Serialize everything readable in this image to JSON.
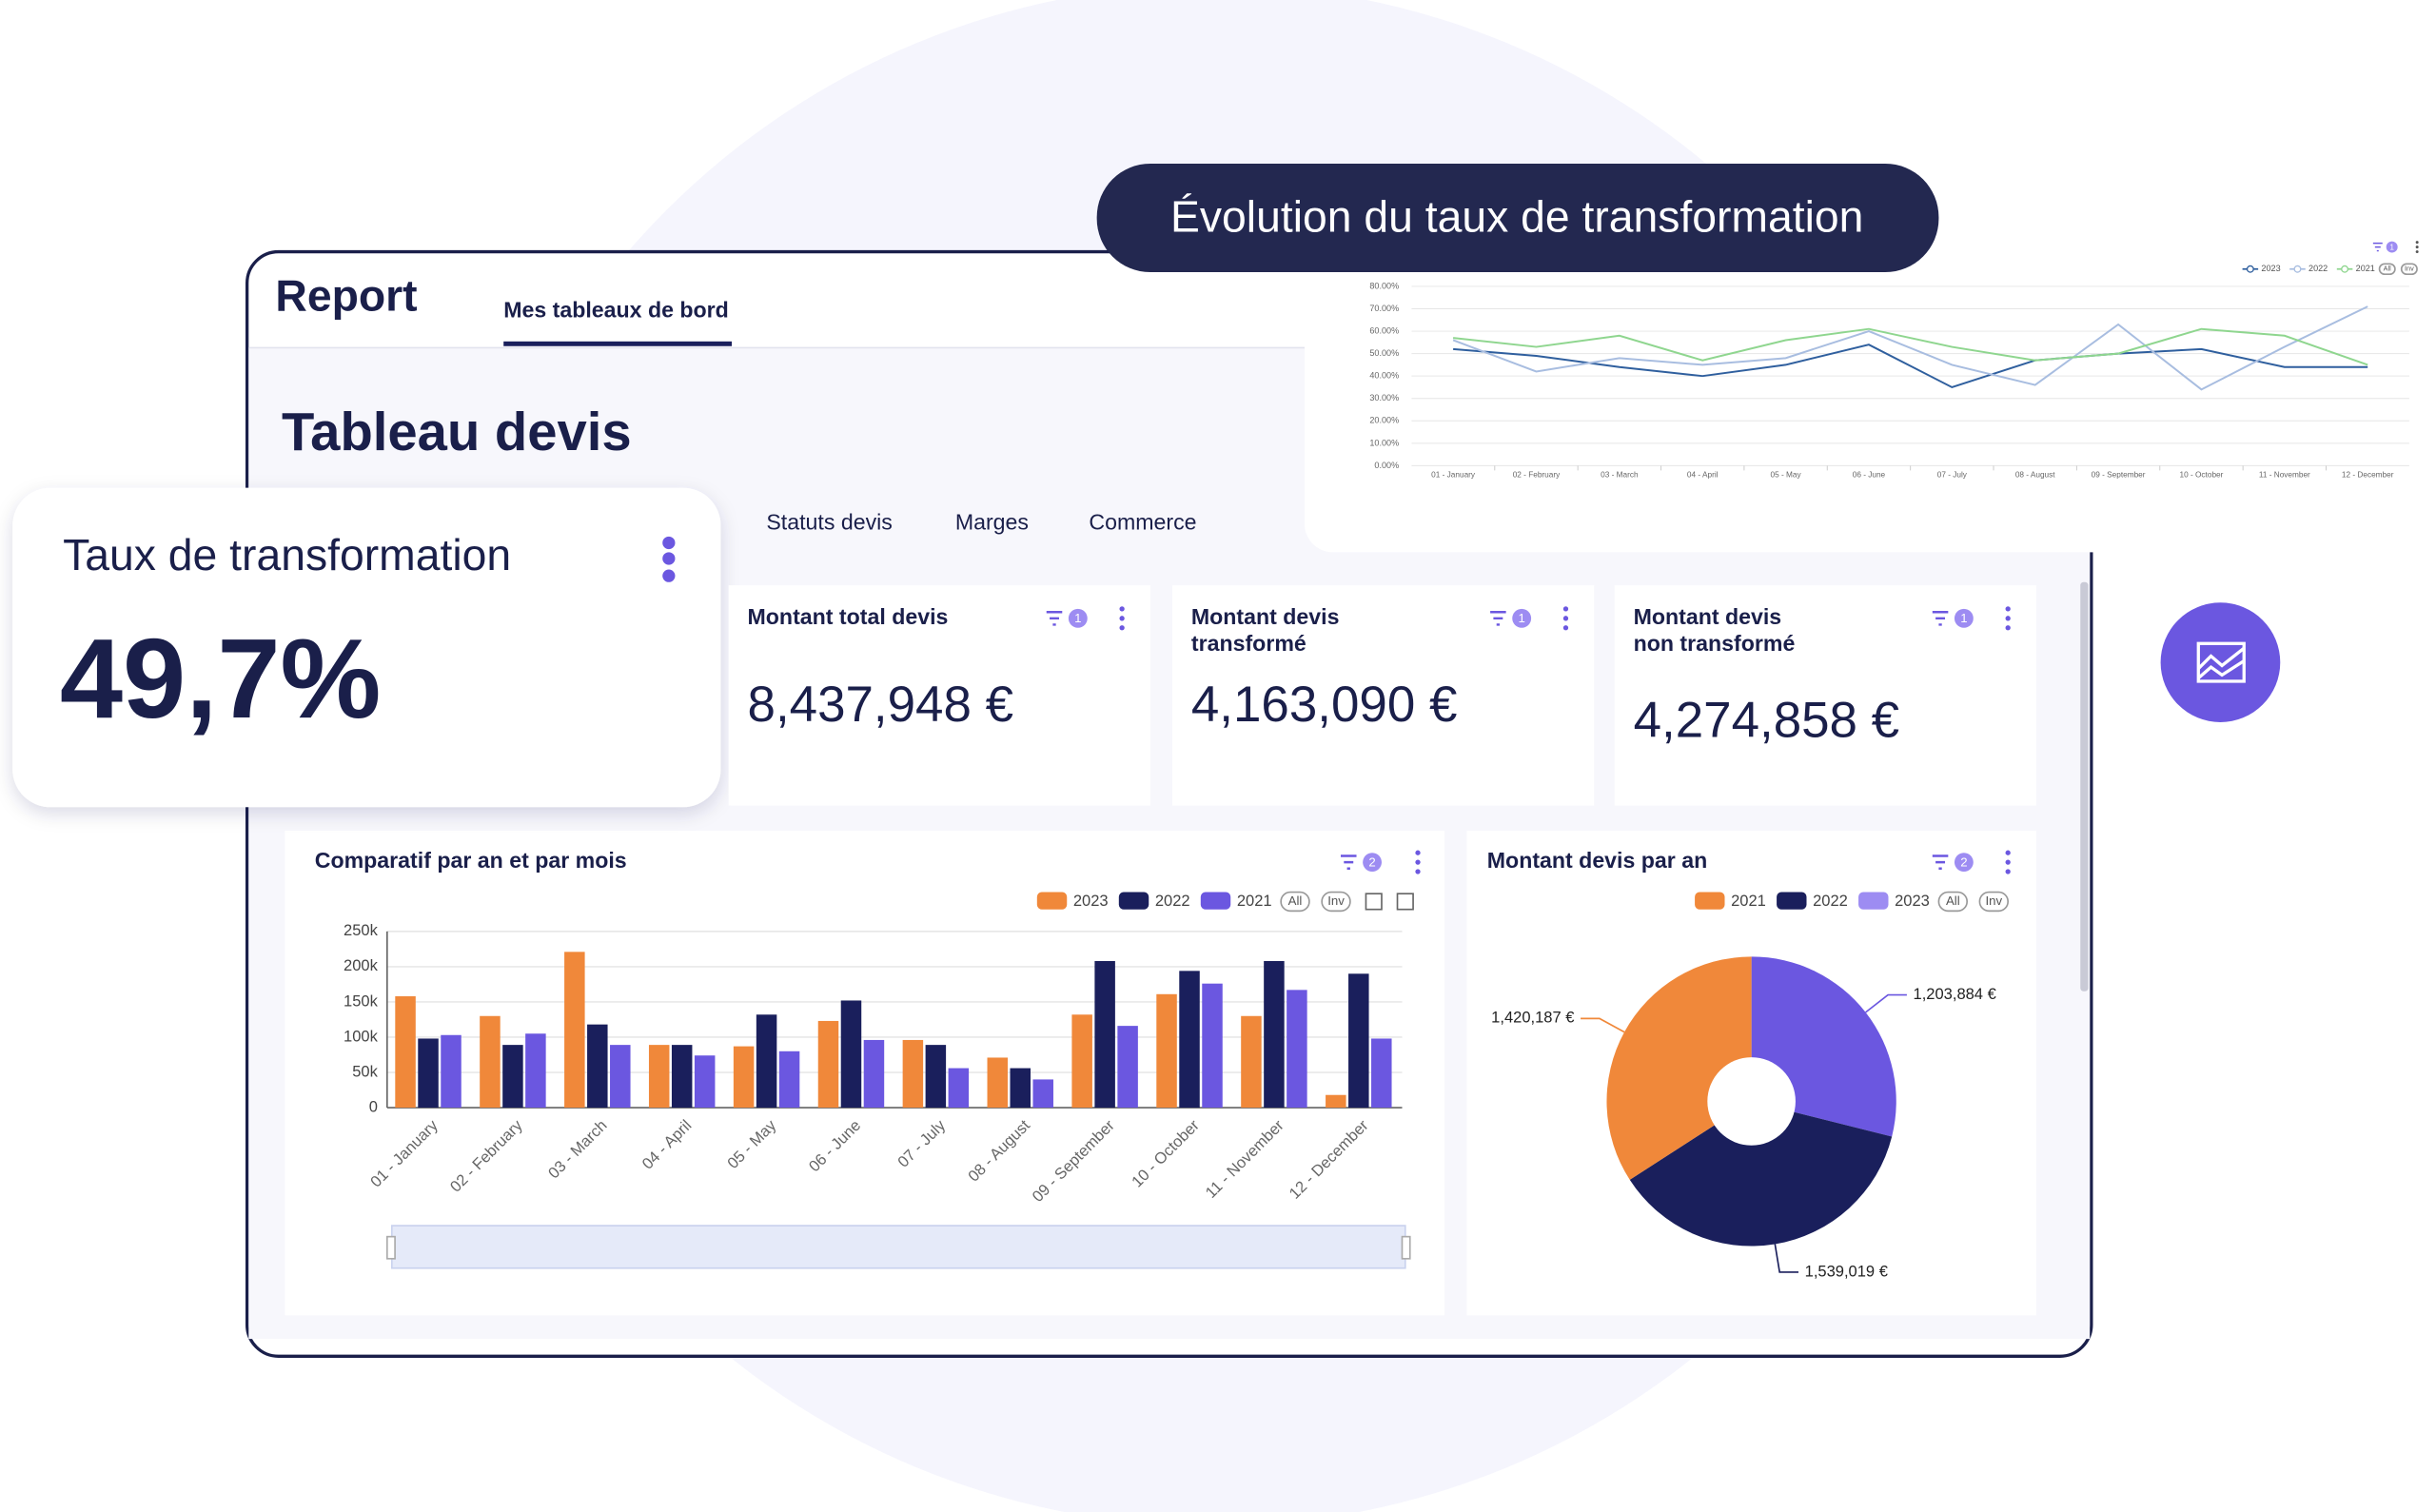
{
  "banner": "Évolution du taux de transformation",
  "header": {
    "logo": "Report",
    "tab": "Mes tableaux de bord"
  },
  "page_title": "Tableau devis",
  "tabs": [
    "Statuts devis",
    "Marges",
    "Commerce"
  ],
  "highlight": {
    "title": "Taux de transformation",
    "value": "49,7%"
  },
  "kpis": [
    {
      "title": [
        "Montant total devis"
      ],
      "value": "8,437,948 €",
      "filters": "1"
    },
    {
      "title": [
        "Montant devis",
        "transformé"
      ],
      "value": "4,163,090 €",
      "filters": "1"
    },
    {
      "title": [
        "Montant devis",
        "non transformé"
      ],
      "value": "4,274,858 €",
      "filters": "1"
    }
  ],
  "chart_data": [
    {
      "type": "line",
      "filters": "1",
      "legend_buttons": [
        "All",
        "Inv"
      ],
      "grid": true,
      "categories": [
        "01 - January",
        "02 - February",
        "03 - March",
        "04 - April",
        "05 - May",
        "06 - June",
        "07 - July",
        "08 - August",
        "09 - September",
        "10 - October",
        "11 - November",
        "12 - December"
      ],
      "series": [
        {
          "name": "2023",
          "color": "#2f5f9e",
          "values": [
            52,
            49,
            44,
            40,
            45,
            54,
            35,
            47,
            50,
            52,
            44,
            44
          ]
        },
        {
          "name": "2022",
          "color": "#a8bde0",
          "values": [
            56,
            42,
            48,
            45,
            48,
            60,
            45,
            36,
            63,
            34,
            53,
            71
          ]
        },
        {
          "name": "2021",
          "color": "#8fd68f",
          "values": [
            57,
            53,
            58,
            47,
            56,
            61,
            53,
            47,
            50,
            61,
            58,
            45
          ]
        }
      ],
      "ylim": [
        0,
        80
      ],
      "yticks": [
        {
          "value": 0,
          "label": "0.00%"
        },
        {
          "value": 10,
          "label": "10.00%"
        },
        {
          "value": 20,
          "label": "20.00%"
        },
        {
          "value": 30,
          "label": "30.00%"
        },
        {
          "value": 40,
          "label": "40.00%"
        },
        {
          "value": 50,
          "label": "50.00%"
        },
        {
          "value": 60,
          "label": "60.00%"
        },
        {
          "value": 70,
          "label": "70.00%"
        },
        {
          "value": 80,
          "label": "80.00%"
        }
      ]
    },
    {
      "type": "bar",
      "title": "Comparatif par an et par mois",
      "filters": "2",
      "legend_buttons": [
        "All",
        "Inv"
      ],
      "grid": true,
      "categories": [
        "01 - January",
        "02 - February",
        "03 - March",
        "04 - April",
        "05 - May",
        "06 - June",
        "07 - July",
        "08 - August",
        "09 - September",
        "10 - October",
        "11 - November",
        "12 - December"
      ],
      "series": [
        {
          "name": "2023",
          "color": "#f0883a",
          "values": [
            158000,
            130000,
            221000,
            89000,
            87000,
            123000,
            96000,
            71000,
            132000,
            161000,
            130000,
            18000
          ]
        },
        {
          "name": "2022",
          "color": "#1a1f5c",
          "values": [
            98000,
            89000,
            118000,
            89000,
            132000,
            152000,
            89000,
            56000,
            208000,
            194000,
            208000,
            190000
          ]
        },
        {
          "name": "2021",
          "color": "#6b57e0",
          "values": [
            103000,
            105000,
            89000,
            74000,
            80000,
            96000,
            56000,
            40000,
            116000,
            176000,
            167000,
            98000
          ]
        }
      ],
      "ylim": [
        0,
        250000
      ],
      "yticks": [
        0,
        {
          "value": 50000,
          "label": "50k"
        },
        {
          "value": 100000,
          "label": "100k"
        },
        {
          "value": 150000,
          "label": "150k"
        },
        {
          "value": 200000,
          "label": "200k"
        },
        {
          "value": 250000,
          "label": "250k"
        }
      ]
    },
    {
      "type": "pie",
      "title": "Montant devis par an",
      "filters": "2",
      "legend_buttons": [
        "All",
        "Inv"
      ],
      "categories": [
        "2021",
        "2022",
        "2023"
      ],
      "values": [
        1420187,
        1539019,
        1203884
      ],
      "value_labels": [
        "1,420,187 €",
        "1,539,019 €",
        "1,203,884 €"
      ],
      "colors": [
        "#f0883a",
        "#1a1f5c",
        "#6b57e0"
      ],
      "legend_colors": [
        "#f0883a",
        "#1a1f5c",
        "#9d8cf2"
      ]
    }
  ]
}
